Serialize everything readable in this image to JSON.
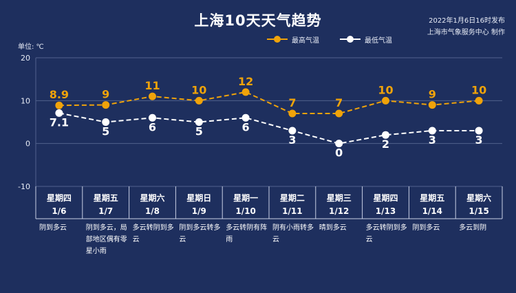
{
  "header": {
    "title": "上海10天天气趋势",
    "publish_time": "2022年1月6日16时发布",
    "publisher": "上海市气象服务中心 制作"
  },
  "colors": {
    "background": "#1e2f5e",
    "high_series": "#f0a30a",
    "low_series": "#ffffff",
    "grid": "#51628d"
  },
  "chart_data": {
    "type": "line",
    "unit_label": "单位: ℃",
    "ylim": [
      -10,
      20
    ],
    "yticks": [
      "20",
      "10",
      "0",
      "-10"
    ],
    "grid": true,
    "legend_position": "top",
    "categories": [
      {
        "weekday": "星期四",
        "date": "1/6",
        "weather": "阴到多云"
      },
      {
        "weekday": "星期五",
        "date": "1/7",
        "weather": "阴到多云，局部地区偶有零星小雨"
      },
      {
        "weekday": "星期六",
        "date": "1/8",
        "weather": "多云转阴到多云"
      },
      {
        "weekday": "星期日",
        "date": "1/9",
        "weather": "阴到多云转多云"
      },
      {
        "weekday": "星期一",
        "date": "1/10",
        "weather": "多云转阴有阵雨"
      },
      {
        "weekday": "星期二",
        "date": "1/11",
        "weather": "阴有小雨转多云"
      },
      {
        "weekday": "星期三",
        "date": "1/12",
        "weather": "晴到多云"
      },
      {
        "weekday": "星期四",
        "date": "1/13",
        "weather": "多云转阴到多云"
      },
      {
        "weekday": "星期五",
        "date": "1/14",
        "weather": "阴到多云"
      },
      {
        "weekday": "星期六",
        "date": "1/15",
        "weather": "多云到阴"
      }
    ],
    "series": [
      {
        "name": "最高气温",
        "values": [
          8.9,
          9,
          11,
          10,
          12,
          7,
          7,
          10,
          9,
          10
        ],
        "labels": [
          "8.9",
          "9",
          "11",
          "10",
          "12",
          "7",
          "7",
          "10",
          "9",
          "10"
        ]
      },
      {
        "name": "最低气温",
        "values": [
          7.1,
          5,
          6,
          5,
          6,
          3,
          0,
          2,
          3,
          3
        ],
        "labels": [
          "7.1",
          "5",
          "6",
          "5",
          "6",
          "3",
          "0",
          "2",
          "3",
          "3"
        ]
      }
    ]
  }
}
